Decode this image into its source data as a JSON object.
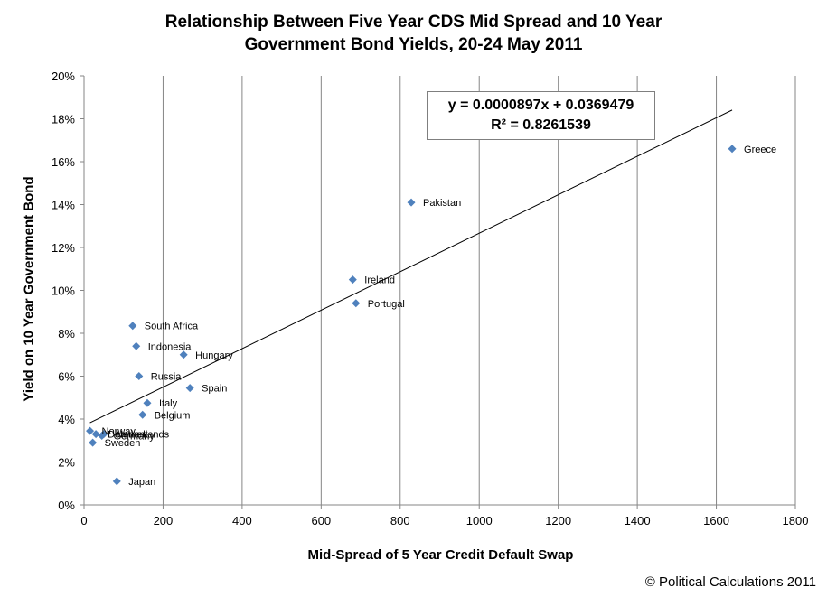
{
  "chart_data": {
    "type": "scatter",
    "title_lines": [
      "Relationship Between Five Year CDS Mid Spread and 10 Year",
      "Government Bond Yields, 20-24 May 2011"
    ],
    "xlabel": "Mid-Spread of 5 Year Credit Default Swap",
    "ylabel": "Yield on 10 Year Government Bond",
    "xlim": [
      0,
      1800
    ],
    "ylim": [
      0,
      0.2
    ],
    "x_ticks": [
      0,
      200,
      400,
      600,
      800,
      1000,
      1200,
      1400,
      1600,
      1800
    ],
    "x_tick_labels": [
      "0",
      "200",
      "400",
      "600",
      "800",
      "1000",
      "1200",
      "1400",
      "1600",
      "1800"
    ],
    "y_ticks": [
      0,
      0.02,
      0.04,
      0.06,
      0.08,
      0.1,
      0.12,
      0.14,
      0.16,
      0.18,
      0.2
    ],
    "y_tick_labels": [
      "0%",
      "2%",
      "4%",
      "6%",
      "8%",
      "10%",
      "12%",
      "14%",
      "16%",
      "18%",
      "20%"
    ],
    "grid": "vertical",
    "marker_color": "#4f81bd",
    "trendline": {
      "slope": 8.97e-05,
      "intercept": 0.0369479,
      "x_range": [
        15,
        1640
      ]
    },
    "equation_lines": [
      "y = 0.0000897x + 0.0369479",
      "R² = 0.8261539"
    ],
    "points": [
      {
        "label": "Greece",
        "x": 1640,
        "y": 0.166
      },
      {
        "label": "Pakistan",
        "x": 828,
        "y": 0.141
      },
      {
        "label": "Ireland",
        "x": 680,
        "y": 0.105
      },
      {
        "label": "Portugal",
        "x": 688,
        "y": 0.094
      },
      {
        "label": "South Africa",
        "x": 123,
        "y": 0.0835
      },
      {
        "label": "Indonesia",
        "x": 132,
        "y": 0.074
      },
      {
        "label": "Hungary",
        "x": 252,
        "y": 0.07
      },
      {
        "label": "Russia",
        "x": 139,
        "y": 0.06
      },
      {
        "label": "Spain",
        "x": 268,
        "y": 0.0545
      },
      {
        "label": "Italy",
        "x": 160,
        "y": 0.0475
      },
      {
        "label": "Belgium",
        "x": 148,
        "y": 0.042
      },
      {
        "label": "Norway",
        "x": 15,
        "y": 0.0345
      },
      {
        "label": "Netherlands",
        "x": 50,
        "y": 0.033
      },
      {
        "label": "Denmark",
        "x": 30,
        "y": 0.033
      },
      {
        "label": "Germany",
        "x": 45,
        "y": 0.0322
      },
      {
        "label": "Sweden",
        "x": 22,
        "y": 0.029
      },
      {
        "label": "Japan",
        "x": 83,
        "y": 0.011
      }
    ]
  },
  "footer": {
    "copyright": "© Political Calculations 2011"
  }
}
